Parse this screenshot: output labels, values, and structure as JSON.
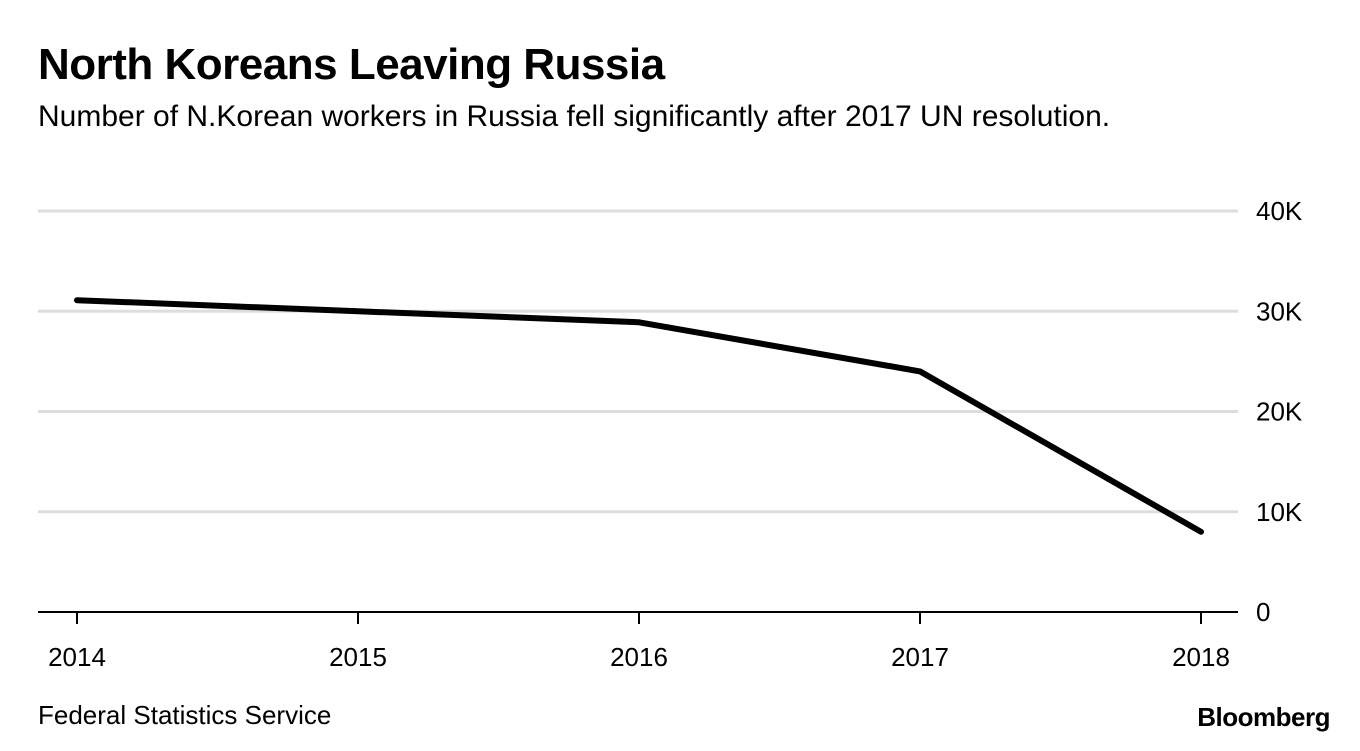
{
  "header": {
    "title": "North Koreans Leaving Russia",
    "subtitle": "Number of N.Korean workers in Russia fell significantly after 2017 UN resolution."
  },
  "footer": {
    "source": "Federal Statistics Service",
    "brand": "Bloomberg"
  },
  "chart_data": {
    "type": "line",
    "x": [
      2014,
      2015,
      2016,
      2017,
      2018
    ],
    "series": [
      {
        "values": [
          31100,
          30000,
          28900,
          24000,
          8000
        ],
        "color": "#000000"
      }
    ],
    "x_ticks": [
      "2014",
      "2015",
      "2016",
      "2017",
      "2018"
    ],
    "y_ticks": [
      {
        "value": 0,
        "label": "0"
      },
      {
        "value": 10000,
        "label": "10K"
      },
      {
        "value": 20000,
        "label": "20K"
      },
      {
        "value": 30000,
        "label": "30K"
      },
      {
        "value": 40000,
        "label": "40K"
      }
    ],
    "ylim": [
      0,
      40000
    ],
    "xlim": [
      2014,
      2018
    ],
    "xlabel": "",
    "ylabel": "",
    "grid": true,
    "grid_color": "#dddddd",
    "axis_color": "#000000",
    "y_axis_side": "right"
  }
}
